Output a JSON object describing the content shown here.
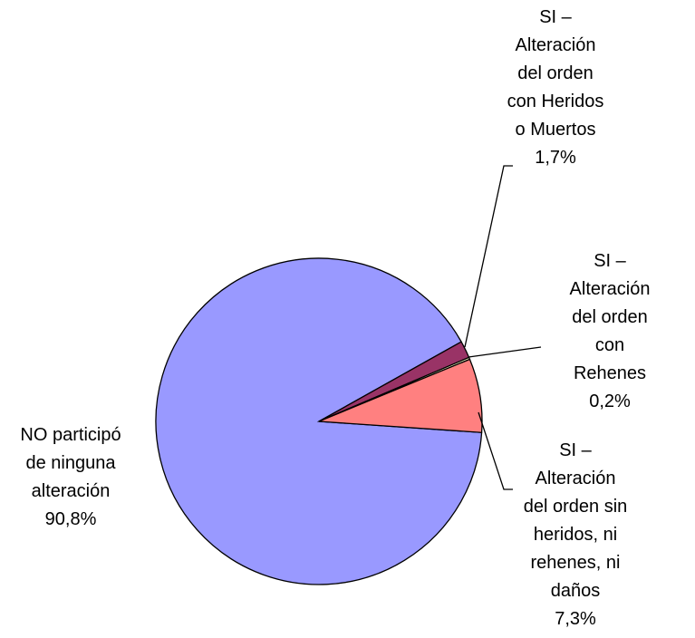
{
  "chart_data": {
    "type": "pie",
    "categories": [
      "NO participó\nde ninguna\nalteración",
      "SI –\nAlteración\ndel orden\ncon Heridos\no Muertos",
      "SI –\nAlteración\ndel orden\ncon Rehenes",
      "SI –\nAlteración\ndel orden sin\nheridos, ni\nrehenes, ni\ndaños"
    ],
    "values": [
      90.8,
      1.7,
      0.2,
      7.3
    ],
    "value_labels": [
      "90,8%",
      "1,7%",
      "0,2%",
      "7,3%"
    ],
    "colors": [
      "#9999ff",
      "#993366",
      "#ffffcc",
      "#ff8080"
    ]
  }
}
